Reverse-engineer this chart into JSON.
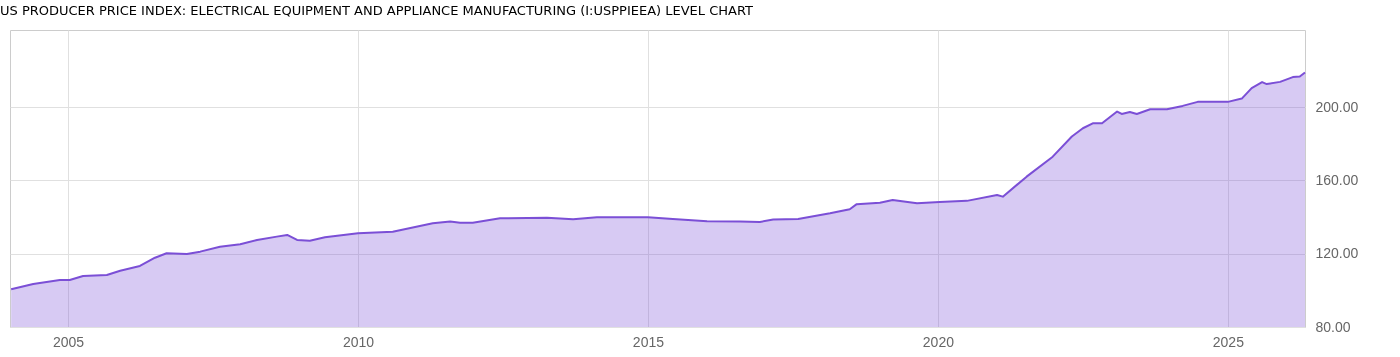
{
  "chart_data": {
    "type": "area",
    "title": "US PRODUCER PRICE INDEX: ELECTRICAL EQUIPMENT AND APPLIANCE MANUFACTURING (I:USPPIEEA) LEVEL CHART",
    "x": [
      2004.02,
      2004.4,
      2004.86,
      2005.03,
      2005.26,
      2005.67,
      2005.9,
      2006.24,
      2006.5,
      2006.7,
      2007.05,
      2007.28,
      2007.62,
      2007.97,
      2008.26,
      2008.6,
      2008.78,
      2008.95,
      2009.17,
      2009.43,
      2010.0,
      2010.6,
      2011.29,
      2011.59,
      2011.76,
      2011.98,
      2012.45,
      2013.26,
      2013.71,
      2014.12,
      2015.0,
      2015.43,
      2016.02,
      2016.59,
      2016.93,
      2017.16,
      2017.59,
      2018.14,
      2018.48,
      2018.6,
      2019.0,
      2019.22,
      2019.64,
      2020.03,
      2020.5,
      2021.02,
      2021.12,
      2021.53,
      2021.98,
      2022.31,
      2022.5,
      2022.67,
      2022.83,
      2023.09,
      2023.17,
      2023.31,
      2023.43,
      2023.66,
      2023.95,
      2024.22,
      2024.48,
      2024.74,
      2025.0,
      2025.24,
      2025.41,
      2025.59,
      2025.67,
      2025.9,
      2026.12,
      2026.24,
      2026.33
    ],
    "series": [
      {
        "color": "#7b4fd6",
        "values": [
          100.6,
          103.5,
          105.6,
          105.6,
          107.8,
          108.4,
          110.7,
          113.3,
          117.8,
          120.2,
          119.8,
          121.1,
          123.8,
          125.1,
          127.5,
          129.3,
          130.2,
          127.5,
          127.1,
          128.9,
          131.1,
          132.0,
          136.6,
          137.5,
          136.9,
          136.9,
          139.3,
          139.6,
          138.8,
          139.9,
          139.9,
          138.9,
          137.7,
          137.5,
          137.3,
          138.6,
          138.9,
          142.0,
          144.2,
          147.0,
          147.8,
          149.3,
          147.5,
          148.2,
          148.8,
          152.0,
          151.1,
          162.0,
          172.9,
          183.9,
          188.4,
          191.1,
          191.1,
          197.5,
          196.2,
          197.3,
          196.2,
          198.8,
          198.8,
          200.6,
          202.8,
          202.8,
          202.8,
          204.6,
          210.3,
          213.6,
          212.5,
          213.7,
          216.3,
          216.6,
          218.8
        ]
      }
    ],
    "xlim": [
      2004.0,
      2026.33
    ],
    "xticks": [
      2005,
      2010,
      2015,
      2020,
      2025
    ],
    "ylim": [
      80,
      242
    ],
    "yticks": [
      {
        "value": 80,
        "label": "80.00"
      },
      {
        "value": 120,
        "label": "120.00"
      },
      {
        "value": 160,
        "label": "160.00"
      },
      {
        "value": 200,
        "label": "200.00"
      }
    ],
    "grid": true
  }
}
